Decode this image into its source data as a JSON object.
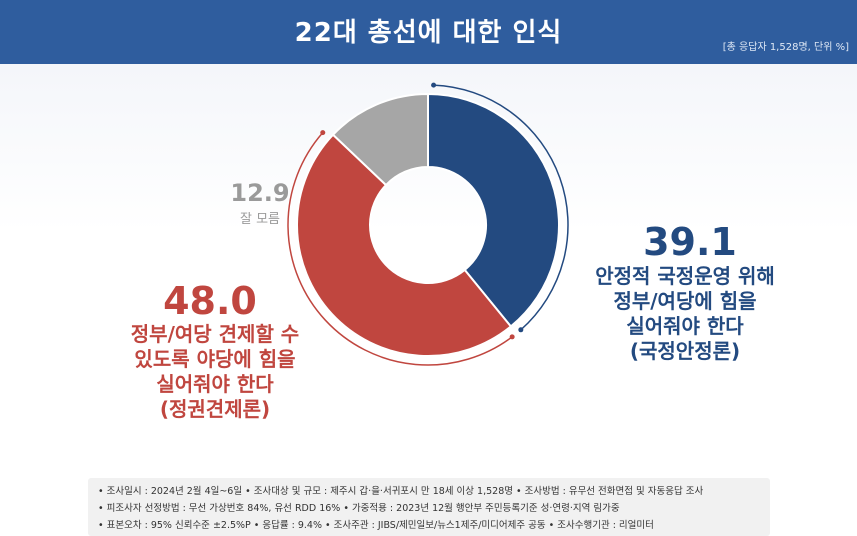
{
  "header": {
    "title": "22대 총선에 대한 인식",
    "note": "[총 응답자 1,528명, 단위 %]"
  },
  "colors": {
    "header_bg": "#2f5d9e",
    "stability": "#234a80",
    "check": "#c0463f",
    "unknown": "#a6a6a6"
  },
  "chart_data": {
    "type": "pie",
    "variant": "donut",
    "unit": "%",
    "slices": [
      {
        "value": 39.1,
        "label": "안정적 국정운영 위해 정부/여당에 힘을 실어줘야 한다 (국정안정론)",
        "color": "#234a80"
      },
      {
        "value": 48.0,
        "label": "정부/여당 견제할 수 있도록 야당에 힘을 실어줘야 한다 (정권견제론)",
        "color": "#c0463f"
      },
      {
        "value": 12.9,
        "label": "잘 모름",
        "color": "#a6a6a6"
      }
    ]
  },
  "labels": {
    "check_value": "48.0",
    "check_lines": [
      "정부/여당 견제할 수",
      "있도록 야당에 힘을",
      "실어줘야 한다",
      "(정권견제론)"
    ],
    "stability_value": "39.1",
    "stability_lines": [
      "안정적 국정운영 위해",
      "정부/여당에 힘을",
      "실어줘야 한다",
      "(국정안정론)"
    ],
    "unknown_value": "12.9",
    "unknown_text": "잘 모름"
  },
  "footer": {
    "line1": "• 조사일시 : 2024년 2월 4일~6일   • 조사대상 및 규모 : 제주시 갑·을·서귀포시 만 18세 이상 1,528명   • 조사방법 : 유무선 전화면접 및 자동응답 조사",
    "line2": "• 피조사자 선정방법 : 무선 가상번호 84%, 유선 RDD 16%   • 가중적용 : 2023년 12월 행안부 주민등록기준 성·연령·지역 림가중",
    "line3": "• 표본오차 : 95% 신뢰수준 ±2.5%P   • 응답률 : 9.4%   • 조사주관 : JIBS/제민일보/뉴스1제주/미디어제주 공동   • 조사수행기관 : 리얼미터"
  }
}
